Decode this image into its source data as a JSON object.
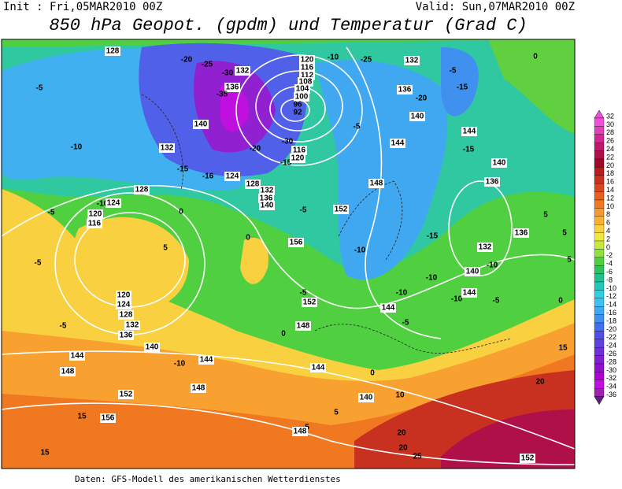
{
  "header": {
    "init": "Init : Fri,05MAR2010 00Z",
    "valid": "Valid: Sun,07MAR2010 00Z",
    "title": "850 hPa Geopot. (gpdm) und Temperatur (Grad C)"
  },
  "contour_labels": [
    128,
    -20,
    -25,
    -30,
    132,
    120,
    116,
    112,
    108,
    104,
    100,
    96,
    92,
    -10,
    -25,
    132,
    -5,
    -15,
    136,
    -20,
    140,
    136,
    -35,
    140,
    -20,
    -15,
    116,
    120,
    -30,
    0,
    -5,
    -10,
    132,
    -15,
    -16,
    124,
    128,
    132,
    136,
    140,
    144,
    -15,
    144,
    -5,
    140,
    136,
    148,
    152,
    -10,
    128,
    124,
    120,
    116,
    -5,
    0,
    -5,
    156,
    -10,
    -15,
    -10,
    132,
    136,
    5,
    5,
    0,
    -5,
    5,
    120,
    124,
    128,
    132,
    136,
    -5,
    152,
    -10,
    -10,
    140,
    144,
    -5,
    144,
    -5,
    -10,
    0,
    5,
    0,
    148,
    -5,
    140,
    144,
    -10,
    144,
    148,
    15,
    144,
    0,
    148,
    152,
    140,
    10,
    5,
    20,
    15,
    156,
    5,
    148,
    20,
    20,
    25,
    15,
    152
  ],
  "colorbar": [
    {
      "value": 32,
      "color": "#f050d8"
    },
    {
      "value": 30,
      "color": "#e040b8"
    },
    {
      "value": 28,
      "color": "#d02890"
    },
    {
      "value": 26,
      "color": "#c01868"
    },
    {
      "value": 24,
      "color": "#b01048"
    },
    {
      "value": 22,
      "color": "#a00828"
    },
    {
      "value": 20,
      "color": "#b81c1c"
    },
    {
      "value": 18,
      "color": "#c83020"
    },
    {
      "value": 16,
      "color": "#d84820"
    },
    {
      "value": 14,
      "color": "#e86020"
    },
    {
      "value": 12,
      "color": "#f07820"
    },
    {
      "value": 10,
      "color": "#f89830"
    },
    {
      "value": 8,
      "color": "#f8b030"
    },
    {
      "value": 6,
      "color": "#f8d040"
    },
    {
      "value": 4,
      "color": "#f0e840"
    },
    {
      "value": 2,
      "color": "#c8e840"
    },
    {
      "value": 0,
      "color": "#90e040"
    },
    {
      "value": -2,
      "color": "#50d040"
    },
    {
      "value": -4,
      "color": "#30c060"
    },
    {
      "value": -6,
      "color": "#20c090"
    },
    {
      "value": -8,
      "color": "#20c8b8"
    },
    {
      "value": -10,
      "color": "#30d0e0"
    },
    {
      "value": -12,
      "color": "#40c0f0"
    },
    {
      "value": -14,
      "color": "#40a8f0"
    },
    {
      "value": -16,
      "color": "#4090f0"
    },
    {
      "value": -18,
      "color": "#4070f0"
    },
    {
      "value": -20,
      "color": "#5050e8"
    },
    {
      "value": -22,
      "color": "#6040e0"
    },
    {
      "value": -24,
      "color": "#7030d8"
    },
    {
      "value": -26,
      "color": "#8020d0"
    },
    {
      "value": -28,
      "color": "#9010d0"
    },
    {
      "value": -30,
      "color": "#b000d8"
    },
    {
      "value": -32,
      "color": "#c010e0"
    },
    {
      "value": -34,
      "color": "#a020b0"
    },
    {
      "value": -36,
      "color": "#602080"
    }
  ],
  "footer": "Daten: GFS-Modell des amerikanischen Wetterdienstes"
}
